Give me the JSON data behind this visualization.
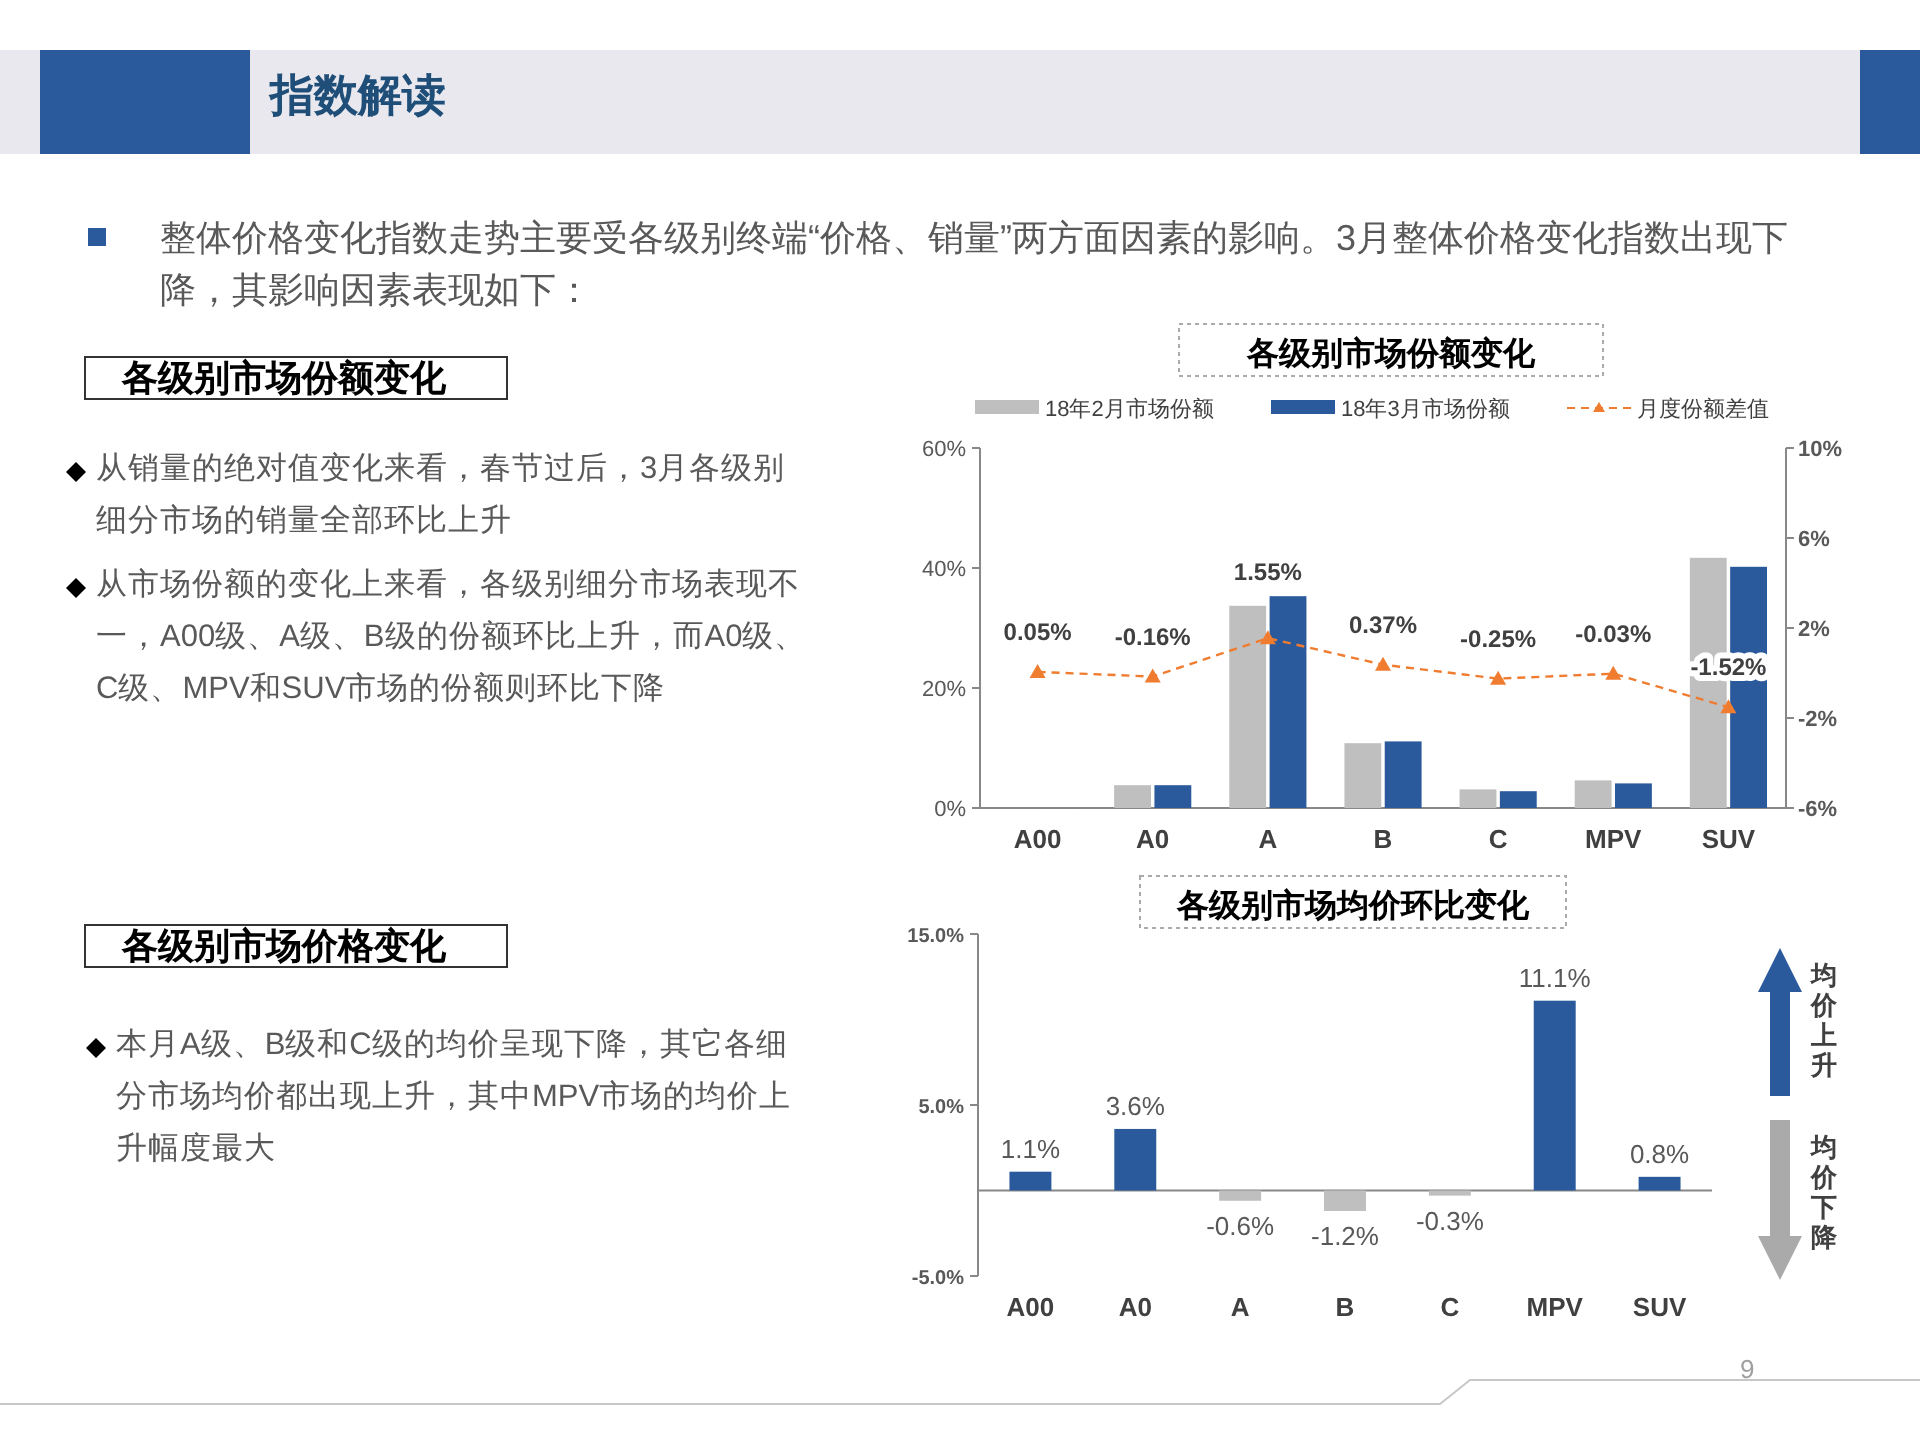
{
  "chart_data": [
    {
      "type": "other",
      "title": "指数解读",
      "annotations": [
        "整体价格变化指数走势主要受各级别终端“价格、销量”两方面因素的影响。3月整体价格变化指数出现下降，其影响因素表现如下：",
        "各级别市场份额变化",
        "从销量的绝对值变化来看，春节过后，3月各级别细分市场的销量全部环比上升",
        "从市场份额的变化上来看，各级别细分市场表现不一，A00级、A级、B级的份额环比上升，而A0级、C级、MPV和SUV市场的份额则环比下降",
        "各级别市场价格变化",
        "本月A级、B级和C级的均价呈现下降，其它各细分市场均价都出现上升，其中MPV市场的均价上升幅度最大",
        "9"
      ]
    },
    {
      "type": "bar",
      "title": "各级别市场份额变化",
      "categories": [
        "A00",
        "A0",
        "A",
        "B",
        "C",
        "MPV",
        "SUV"
      ],
      "series": [
        {
          "name": "18年2月市场份额",
          "color": "#bfbfbf",
          "values": [
            0,
            3.8,
            33.7,
            10.8,
            3.1,
            4.6,
            41.7
          ]
        },
        {
          "name": "18年3月市场份额",
          "color": "#2a5a9b",
          "values": [
            0,
            3.8,
            35.3,
            11.1,
            2.8,
            4.1,
            40.2
          ]
        },
        {
          "name": "月度份额差值",
          "type": "line",
          "axis": "y2",
          "color": "#f07c30",
          "values": [
            0.05,
            -0.16,
            1.55,
            0.37,
            -0.25,
            -0.03,
            -1.52
          ],
          "value_labels": [
            "0.05%",
            "-0.16%",
            "1.55%",
            "0.37%",
            "-0.25%",
            "-0.03%",
            "-1.52%"
          ]
        }
      ],
      "ylim": [
        0,
        60
      ],
      "yticks": [
        {
          "value": 0,
          "label": "0%"
        },
        {
          "value": 20,
          "label": "20%"
        },
        {
          "value": 40,
          "label": "40%"
        },
        {
          "value": 60,
          "label": "60%"
        }
      ],
      "y2lim": [
        -6,
        10
      ],
      "y2ticks": [
        {
          "value": -6,
          "label": "-6%"
        },
        {
          "value": -2,
          "label": "-2%"
        },
        {
          "value": 2,
          "label": "2%"
        },
        {
          "value": 6,
          "label": "6%"
        },
        {
          "value": 10,
          "label": "10%"
        }
      ],
      "legend": "top",
      "marker": "triangle",
      "line_style": "dashed"
    },
    {
      "type": "bar",
      "title": "各级别市场均价环比变化",
      "categories": [
        "A00",
        "A0",
        "A",
        "B",
        "C",
        "MPV",
        "SUV"
      ],
      "values": [
        1.1,
        3.6,
        -0.6,
        -1.2,
        -0.3,
        11.1,
        0.8
      ],
      "colors": [
        "#2a5a9b",
        "#2a5a9b",
        "#bfbfbf",
        "#bfbfbf",
        "#bfbfbf",
        "#2a5a9b",
        "#2a5a9b"
      ],
      "value_labels": [
        "1.1%",
        "3.6%",
        "-0.6%",
        "-1.2%",
        "-0.3%",
        "11.1%",
        "0.8%"
      ],
      "ylim": [
        -5,
        15
      ],
      "yticks": [
        {
          "value": -5,
          "label": "-5.0%"
        },
        {
          "value": 5,
          "label": "5.0%"
        },
        {
          "value": 15,
          "label": "15.0%"
        }
      ],
      "annotations": [
        "均价上升",
        "均价下降"
      ]
    }
  ]
}
